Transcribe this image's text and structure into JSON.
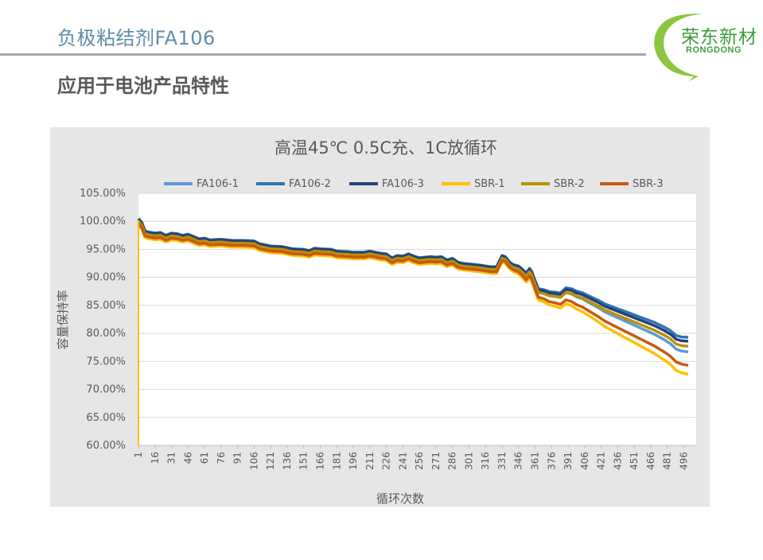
{
  "page": {
    "title": "负极粘结剂FA106",
    "subtitle": "应用于电池产品特性"
  },
  "logo": {
    "name_cn": "荣东新材",
    "name_en": "RONGDONG",
    "ring_color": "#8cc63f"
  },
  "chart_data": {
    "type": "line",
    "title": "高温45℃ 0.5C充、1C放循环",
    "xlabel": "循环次数",
    "ylabel": "容量保持率",
    "x_tick_labels": [
      "1",
      "16",
      "31",
      "46",
      "61",
      "76",
      "91",
      "106",
      "121",
      "136",
      "151",
      "166",
      "181",
      "196",
      "211",
      "226",
      "241",
      "256",
      "271",
      "286",
      "301",
      "316",
      "331",
      "346",
      "361",
      "376",
      "391",
      "406",
      "421",
      "436",
      "451",
      "466",
      "481",
      "496"
    ],
    "y_tick_labels": [
      "105.00%",
      "100.00%",
      "95.00%",
      "90.00%",
      "85.00%",
      "80.00%",
      "75.00%",
      "70.00%",
      "65.00%",
      "60.00%"
    ],
    "xlim": [
      1,
      500
    ],
    "ylim": [
      60,
      105
    ],
    "grid": true,
    "legend_position": "top",
    "base_points": [
      [
        1,
        100.2
      ],
      [
        4,
        99.5
      ],
      [
        7,
        98.0
      ],
      [
        10,
        97.8
      ],
      [
        16,
        97.6
      ],
      [
        21,
        97.7
      ],
      [
        26,
        97.2
      ],
      [
        31,
        97.6
      ],
      [
        36,
        97.5
      ],
      [
        41,
        97.2
      ],
      [
        46,
        97.4
      ],
      [
        51,
        97.0
      ],
      [
        56,
        96.6
      ],
      [
        61,
        96.7
      ],
      [
        66,
        96.4
      ],
      [
        76,
        96.5
      ],
      [
        86,
        96.3
      ],
      [
        96,
        96.3
      ],
      [
        106,
        96.2
      ],
      [
        111,
        95.7
      ],
      [
        121,
        95.3
      ],
      [
        131,
        95.2
      ],
      [
        141,
        94.8
      ],
      [
        151,
        94.7
      ],
      [
        156,
        94.5
      ],
      [
        161,
        94.9
      ],
      [
        166,
        94.8
      ],
      [
        176,
        94.7
      ],
      [
        181,
        94.4
      ],
      [
        191,
        94.3
      ],
      [
        196,
        94.2
      ],
      [
        206,
        94.2
      ],
      [
        211,
        94.4
      ],
      [
        221,
        94.0
      ],
      [
        226,
        93.9
      ],
      [
        231,
        93.2
      ],
      [
        236,
        93.6
      ],
      [
        241,
        93.5
      ],
      [
        246,
        93.9
      ],
      [
        251,
        93.5
      ],
      [
        256,
        93.2
      ],
      [
        266,
        93.4
      ],
      [
        271,
        93.3
      ],
      [
        276,
        93.4
      ],
      [
        281,
        92.8
      ],
      [
        286,
        93.1
      ],
      [
        291,
        92.4
      ],
      [
        296,
        92.2
      ],
      [
        301,
        92.1
      ],
      [
        311,
        91.9
      ],
      [
        321,
        91.6
      ],
      [
        326,
        91.6
      ],
      [
        331,
        93.6
      ],
      [
        334,
        93.4
      ],
      [
        338,
        92.4
      ],
      [
        341,
        92.0
      ],
      [
        346,
        91.7
      ],
      [
        349,
        91.2
      ],
      [
        353,
        90.4
      ],
      [
        356,
        91.2
      ],
      [
        358,
        90.6
      ],
      [
        361,
        89.0
      ],
      [
        364,
        87.5
      ],
      [
        369,
        87.3
      ],
      [
        374,
        86.9
      ],
      [
        379,
        86.8
      ],
      [
        384,
        86.6
      ],
      [
        389,
        87.5
      ],
      [
        394,
        87.3
      ],
      [
        399,
        86.8
      ],
      [
        404,
        86.5
      ],
      [
        409,
        86.0
      ],
      [
        414,
        85.5
      ],
      [
        419,
        85.0
      ],
      [
        424,
        84.4
      ],
      [
        429,
        84.0
      ],
      [
        434,
        83.6
      ],
      [
        439,
        83.2
      ],
      [
        444,
        82.8
      ],
      [
        449,
        82.4
      ],
      [
        454,
        82.0
      ],
      [
        459,
        81.6
      ],
      [
        464,
        81.2
      ],
      [
        469,
        80.8
      ],
      [
        474,
        80.3
      ],
      [
        479,
        79.8
      ],
      [
        484,
        79.2
      ],
      [
        489,
        78.3
      ],
      [
        494,
        78.0
      ],
      [
        500,
        77.9
      ]
    ],
    "series": [
      {
        "name": "FA106-1",
        "color": "#5b9bd5",
        "offset": 0.2,
        "late_offset": -1.2
      },
      {
        "name": "FA106-2",
        "color": "#2e75b6",
        "offset": 0.3,
        "late_offset": 1.4
      },
      {
        "name": "FA106-3",
        "color": "#264478",
        "offset": 0.2,
        "late_offset": 0.7
      },
      {
        "name": "SBR-1",
        "color": "#ffc000",
        "offset": -0.9,
        "late_offset": -5.2
      },
      {
        "name": "SBR-2",
        "color": "#bf9000",
        "offset": -0.2,
        "late_offset": -0.2
      },
      {
        "name": "SBR-3",
        "color": "#c55a11",
        "offset": -0.6,
        "late_offset": -3.6
      }
    ]
  }
}
